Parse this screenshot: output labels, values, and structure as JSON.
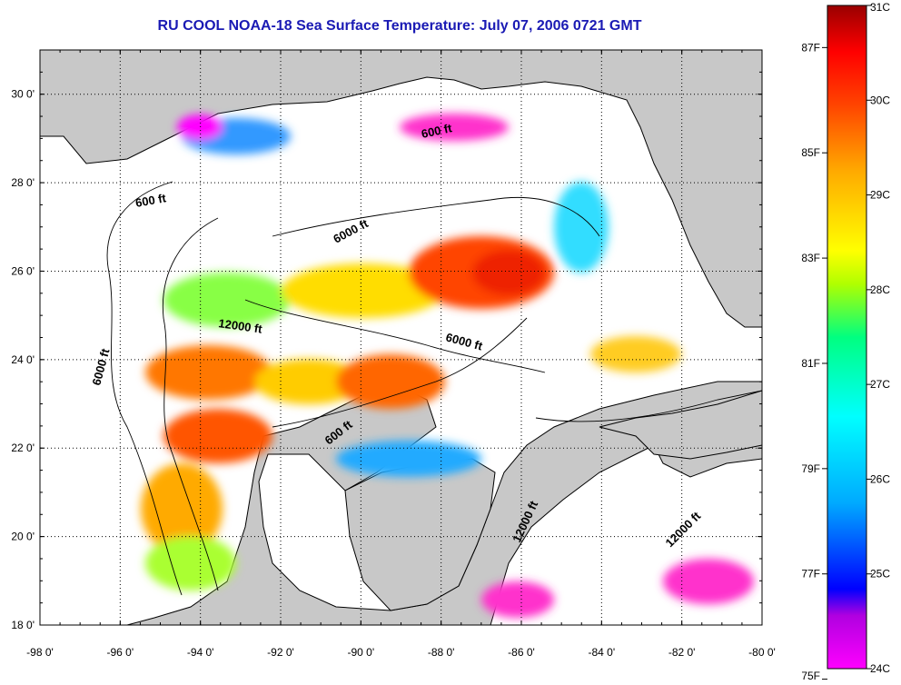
{
  "title": "RU COOL  NOAA-18  Sea Surface Temperature:  July 07, 2006 0721 GMT",
  "map": {
    "lon_range": [
      -98,
      -80
    ],
    "lat_range": [
      18,
      31
    ],
    "lon_ticks": [
      {
        "value": -98,
        "label": "-98 0'"
      },
      {
        "value": -96,
        "label": "-96 0'"
      },
      {
        "value": -94,
        "label": "-94 0'"
      },
      {
        "value": -92,
        "label": "-92 0'"
      },
      {
        "value": -90,
        "label": "-90 0'"
      },
      {
        "value": -88,
        "label": "-88 0'"
      },
      {
        "value": -86,
        "label": "-86 0'"
      },
      {
        "value": -84,
        "label": "-84 0'"
      },
      {
        "value": -82,
        "label": "-82 0'"
      },
      {
        "value": -80,
        "label": "-80 0'"
      }
    ],
    "lat_ticks": [
      {
        "value": 18,
        "label": "18 0'"
      },
      {
        "value": 20,
        "label": "20 0'"
      },
      {
        "value": 22,
        "label": "22 0'"
      },
      {
        "value": 24,
        "label": "24 0'"
      },
      {
        "value": 26,
        "label": "26 0'"
      },
      {
        "value": 28,
        "label": "28 0'"
      },
      {
        "value": 30,
        "label": "30 0'"
      }
    ],
    "grid": true,
    "land_color": "#c8c8c8",
    "ocean_color": "#ffffff",
    "contour_labels": [
      "600 ft",
      "600 ft",
      "6000 ft",
      "12000 ft",
      "6000 ft",
      "6000 ft",
      "600 ft",
      "12000 ft",
      "12000 ft"
    ]
  },
  "colorbar": {
    "celsius_labels": [
      "31C",
      "30C",
      "29C",
      "28C",
      "27C",
      "26C",
      "25C",
      "24C"
    ],
    "fahrenheit_labels": [
      "87F",
      "85F",
      "83F",
      "81F",
      "79F",
      "77F",
      "75F"
    ],
    "celsius_range": [
      24,
      31
    ],
    "colors": [
      "#ff00ff",
      "#8a2be2",
      "#0000ff",
      "#00aaff",
      "#00ffff",
      "#00ff80",
      "#a0ff00",
      "#ffff00",
      "#ffaa00",
      "#ff5500",
      "#ff0000",
      "#990000"
    ]
  }
}
